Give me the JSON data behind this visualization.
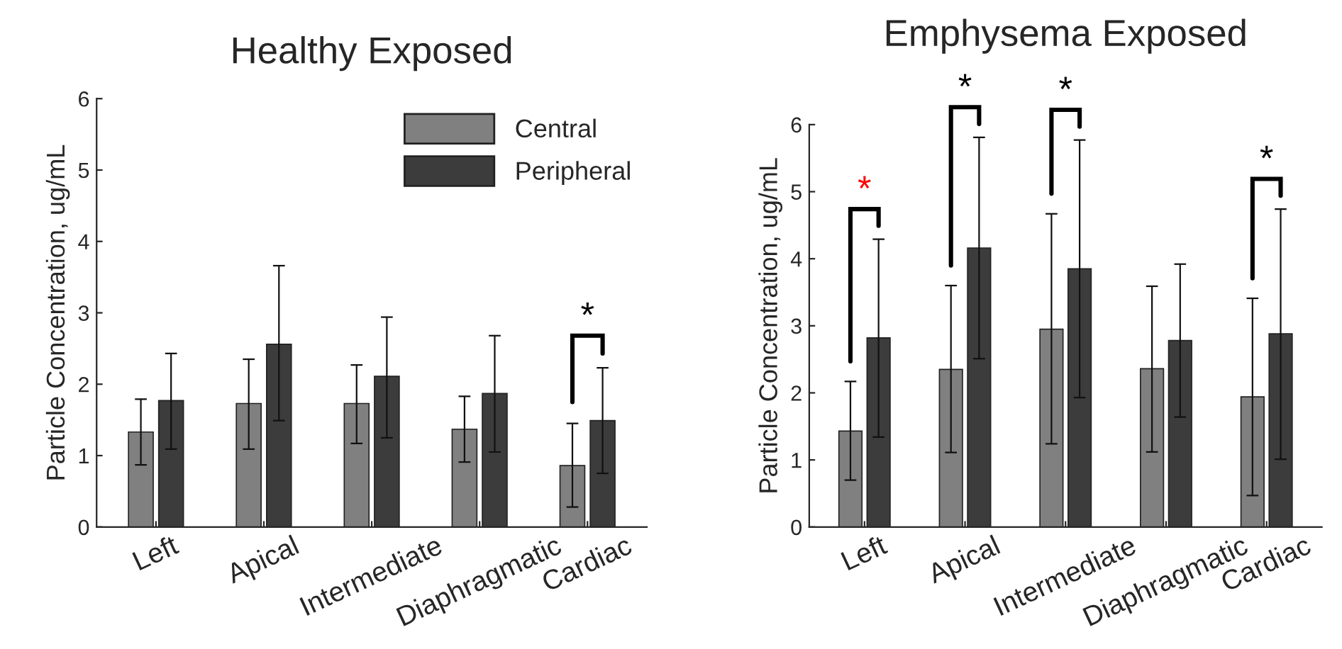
{
  "chart_data": [
    {
      "type": "bar",
      "title": "Healthy Exposed",
      "ylabel": "Particle Concentration, ug/mL",
      "categories": [
        "Left",
        "Apical",
        "Intermediate",
        "Diaphragmatic",
        "Cardiac"
      ],
      "ylim": [
        0,
        6
      ],
      "yticks": [
        0,
        1,
        2,
        3,
        4,
        5,
        6
      ],
      "grid": false,
      "legend": "top right",
      "series": [
        {
          "name": "Central",
          "color": "#808080",
          "values": [
            1.33,
            1.73,
            1.73,
            1.37,
            0.86
          ],
          "errors": [
            [
              0.87,
              1.79
            ],
            [
              1.09,
              2.35
            ],
            [
              1.17,
              2.27
            ],
            [
              0.91,
              1.83
            ],
            [
              0.28,
              1.45
            ]
          ]
        },
        {
          "name": "Peripheral",
          "color": "#3c3c3c",
          "values": [
            1.77,
            2.56,
            2.11,
            1.87,
            1.49
          ],
          "errors": [
            [
              1.09,
              2.43
            ],
            [
              1.49,
              3.66
            ],
            [
              1.25,
              2.94
            ],
            [
              1.05,
              2.68
            ],
            [
              0.75,
              2.23
            ]
          ]
        }
      ],
      "annotations": [
        "*"
      ]
    },
    {
      "type": "bar",
      "title": "Emphysema Exposed",
      "ylabel": "Particle Concentration, ug/mL",
      "categories": [
        "Left",
        "Apical",
        "Intermediate",
        "Diaphragmatic",
        "Cardiac"
      ],
      "ylim": [
        0,
        6
      ],
      "yticks": [
        0,
        1,
        2,
        3,
        4,
        5,
        6
      ],
      "grid": false,
      "legend": false,
      "series": [
        {
          "color": "#808080",
          "values": [
            1.43,
            2.35,
            2.95,
            2.36,
            1.94
          ],
          "errors": [
            [
              0.7,
              2.17
            ],
            [
              1.11,
              3.6
            ],
            [
              1.24,
              4.67
            ],
            [
              1.12,
              3.59
            ],
            [
              0.47,
              3.41
            ]
          ]
        },
        {
          "color": "#3c3c3c",
          "values": [
            2.82,
            4.16,
            3.85,
            2.78,
            2.88
          ],
          "errors": [
            [
              1.34,
              4.29
            ],
            [
              2.51,
              5.81
            ],
            [
              1.93,
              5.77
            ],
            [
              1.64,
              3.92
            ],
            [
              1.01,
              4.74
            ]
          ]
        }
      ],
      "annotations": [
        "*",
        "*",
        "*",
        "*"
      ]
    }
  ]
}
